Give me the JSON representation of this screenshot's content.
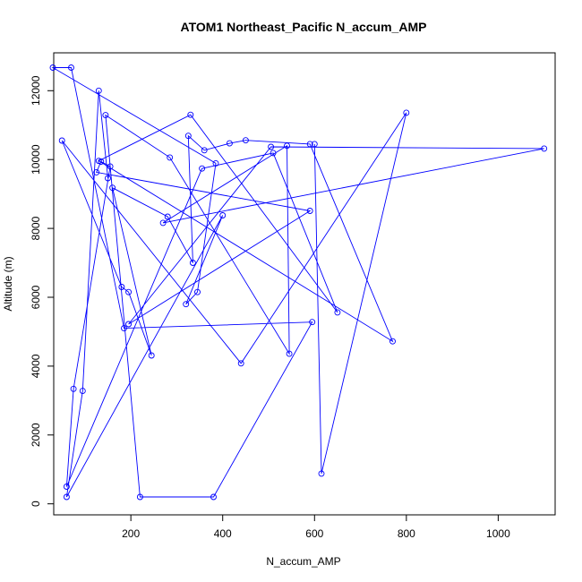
{
  "chart_data": {
    "type": "line",
    "title": "ATOM1 Northeast_Pacific N_accum_AMP",
    "xlabel": "N_accum_AMP",
    "ylabel": "Altitude (m)",
    "xlim": [
      32,
      1124
    ],
    "ylim": [
      -320,
      13100
    ],
    "x_ticks": [
      200,
      400,
      600,
      800,
      1000
    ],
    "y_ticks": [
      0,
      2000,
      4000,
      6000,
      8000,
      10000,
      12000
    ],
    "x_tick_labels": [
      "200",
      "400",
      "600",
      "800",
      "1000"
    ],
    "y_tick_labels": [
      "0",
      "2000",
      "4000",
      "6000",
      "8000",
      "10000",
      "12000"
    ],
    "grid": false,
    "line_color": "#0000FF",
    "series": [
      {
        "x": [
          600,
          615,
          800,
          440,
          50,
          180,
          195,
          245,
          160,
          280,
          335,
          325,
          360,
          415,
          450,
          590,
          770,
          130,
          330,
          650,
          510,
          355,
          60,
          75,
          155,
          135,
          125,
          590,
          195,
          505,
          1100,
          270,
          540,
          545,
          285,
          145,
          220,
          380,
          595,
          185,
          70,
          30,
          385,
          345,
          320,
          400,
          60,
          95,
          130,
          150
        ],
        "y": [
          10450,
          880,
          11360,
          4080,
          10550,
          6300,
          6150,
          4310,
          9180,
          8340,
          7000,
          10690,
          10270,
          10470,
          10560,
          10450,
          4720,
          9960,
          11300,
          5560,
          10190,
          9740,
          500,
          3340,
          9800,
          9940,
          9630,
          8510,
          5220,
          10370,
          10320,
          8160,
          10400,
          4360,
          10060,
          11290,
          200,
          200,
          5280,
          5100,
          12670,
          12670,
          9890,
          6150,
          5800,
          8380,
          200,
          3280,
          12000,
          9460
        ]
      }
    ]
  }
}
